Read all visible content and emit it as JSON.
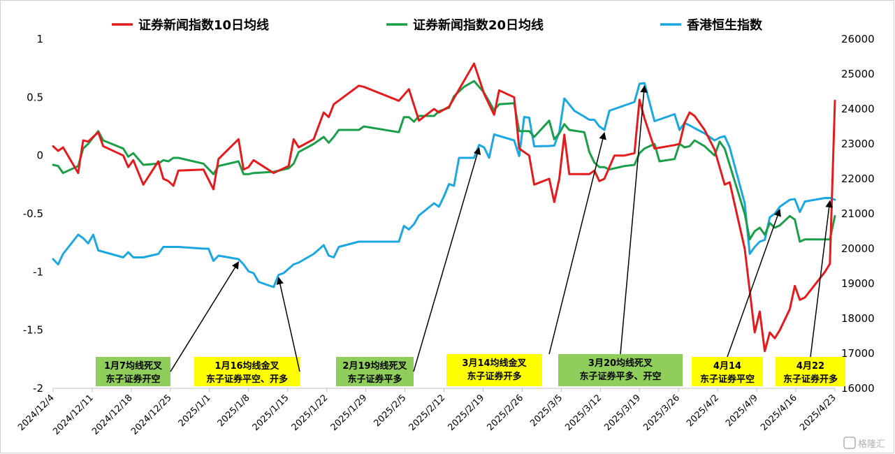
{
  "chart_data": {
    "type": "line",
    "title": "",
    "legend_position": "top",
    "x_labels": [
      "2024/12/4",
      "2024/12/11",
      "2024/12/18",
      "2024/12/25",
      "2025/1/1",
      "2025/1/8",
      "2025/1/15",
      "2025/1/22",
      "2025/1/29",
      "2025/2/5",
      "2025/2/12",
      "2025/2/19",
      "2025/2/26",
      "2025/3/5",
      "2025/3/12",
      "2025/3/19",
      "2025/3/26",
      "2025/4/2",
      "2025/4/9",
      "2025/4/16",
      "2025/4/23"
    ],
    "left_axis": {
      "range": [
        -2,
        1
      ],
      "ticks": [
        "1",
        "0.5",
        "0",
        "-0.5",
        "-1",
        "-1.5",
        "-2"
      ]
    },
    "right_axis": {
      "range": [
        16000,
        26000
      ],
      "ticks": [
        "26000",
        "25000",
        "24000",
        "23000",
        "22000",
        "21000",
        "20000",
        "19000",
        "18000",
        "17000",
        "16000"
      ]
    },
    "series": [
      {
        "name": "证券新闻指数10日均线",
        "color": "#e41a1c",
        "axis": "left",
        "points": [
          [
            0,
            0.08
          ],
          [
            1,
            0.04
          ],
          [
            2,
            0.07
          ],
          [
            5,
            -0.15
          ],
          [
            6,
            0.13
          ],
          [
            7,
            0.12
          ],
          [
            9,
            0.2
          ],
          [
            10,
            0.08
          ],
          [
            14,
            0.0
          ],
          [
            15,
            -0.1
          ],
          [
            16,
            -0.04
          ],
          [
            18,
            -0.25
          ],
          [
            21,
            -0.05
          ],
          [
            22,
            -0.2
          ],
          [
            23,
            -0.22
          ],
          [
            24,
            -0.26
          ],
          [
            25,
            -0.13
          ],
          [
            30,
            -0.12
          ],
          [
            32,
            -0.29
          ],
          [
            33,
            -0.03
          ],
          [
            37,
            0.14
          ],
          [
            38,
            -0.12
          ],
          [
            39,
            -0.1
          ],
          [
            40,
            -0.04
          ],
          [
            44,
            -0.15
          ],
          [
            47,
            -0.09
          ],
          [
            48,
            0.14
          ],
          [
            49,
            0.07
          ],
          [
            52,
            0.14
          ],
          [
            54,
            0.37
          ],
          [
            55,
            0.33
          ],
          [
            56,
            0.44
          ],
          [
            61,
            0.6
          ],
          [
            62,
            0.59
          ],
          [
            69,
            0.47
          ],
          [
            71,
            0.57
          ],
          [
            73,
            0.3
          ],
          [
            76,
            0.4
          ],
          [
            77,
            0.37
          ],
          [
            79,
            0.42
          ],
          [
            84,
            0.79
          ],
          [
            86,
            0.53
          ],
          [
            88,
            0.35
          ],
          [
            89,
            0.56
          ],
          [
            92,
            0.5
          ],
          [
            93,
            0.06
          ],
          [
            95,
            0.0
          ],
          [
            96,
            -0.25
          ],
          [
            99,
            -0.2
          ],
          [
            100,
            -0.4
          ],
          [
            101,
            -0.2
          ],
          [
            102,
            0.18
          ],
          [
            103,
            -0.16
          ],
          [
            106,
            -0.16
          ],
          [
            107,
            -0.16
          ],
          [
            108,
            -0.13
          ],
          [
            109,
            -0.22
          ],
          [
            110,
            -0.2
          ],
          [
            111,
            -0.1
          ],
          [
            112,
            0.0
          ],
          [
            114,
            0.0
          ],
          [
            116,
            0.02
          ],
          [
            117,
            0.48
          ],
          [
            118,
            0.32
          ],
          [
            120,
            0.06
          ],
          [
            124,
            0.09
          ],
          [
            125,
            0.1
          ],
          [
            126,
            0.28
          ],
          [
            127,
            0.37
          ],
          [
            128,
            0.34
          ],
          [
            130,
            0.22
          ],
          [
            132,
            0.05
          ],
          [
            134,
            -0.25
          ],
          [
            135,
            -0.23
          ],
          [
            138,
            -0.8
          ],
          [
            140,
            -1.52
          ],
          [
            141,
            -1.34
          ],
          [
            142,
            -1.68
          ],
          [
            143,
            -1.52
          ],
          [
            144,
            -1.57
          ],
          [
            145,
            -1.5
          ],
          [
            147,
            -1.32
          ],
          [
            148,
            -1.12
          ],
          [
            149,
            -1.24
          ],
          [
            150,
            -1.22
          ],
          [
            154,
            -1.0
          ],
          [
            155,
            -0.93
          ],
          [
            156,
            0.47
          ]
        ]
      },
      {
        "name": "证券新闻指数20日均线",
        "color": "#1b9e48",
        "axis": "left",
        "points": [
          [
            0,
            -0.08
          ],
          [
            1,
            -0.09
          ],
          [
            2,
            -0.15
          ],
          [
            5,
            -0.09
          ],
          [
            6,
            0.06
          ],
          [
            7,
            0.1
          ],
          [
            9,
            0.21
          ],
          [
            10,
            0.13
          ],
          [
            14,
            0.06
          ],
          [
            15,
            -0.01
          ],
          [
            16,
            0.02
          ],
          [
            18,
            -0.08
          ],
          [
            21,
            -0.07
          ],
          [
            22,
            -0.04
          ],
          [
            23,
            -0.05
          ],
          [
            24,
            -0.02
          ],
          [
            25,
            -0.02
          ],
          [
            30,
            -0.07
          ],
          [
            32,
            -0.16
          ],
          [
            33,
            -0.09
          ],
          [
            37,
            -0.05
          ],
          [
            38,
            -0.16
          ],
          [
            39,
            -0.16
          ],
          [
            40,
            -0.15
          ],
          [
            44,
            -0.14
          ],
          [
            47,
            -0.11
          ],
          [
            48,
            -0.07
          ],
          [
            49,
            0.03
          ],
          [
            52,
            0.1
          ],
          [
            54,
            0.16
          ],
          [
            55,
            0.11
          ],
          [
            56,
            0.16
          ],
          [
            57,
            0.22
          ],
          [
            61,
            0.22
          ],
          [
            62,
            0.25
          ],
          [
            69,
            0.2
          ],
          [
            70,
            0.33
          ],
          [
            71,
            0.33
          ],
          [
            72,
            0.29
          ],
          [
            73,
            0.34
          ],
          [
            76,
            0.34
          ],
          [
            77,
            0.38
          ],
          [
            79,
            0.41
          ],
          [
            80,
            0.51
          ],
          [
            82,
            0.59
          ],
          [
            84,
            0.64
          ],
          [
            86,
            0.54
          ],
          [
            88,
            0.39
          ],
          [
            89,
            0.44
          ],
          [
            92,
            0.45
          ],
          [
            93,
            0.21
          ],
          [
            94,
            0.21
          ],
          [
            95,
            0.21
          ],
          [
            96,
            0.16
          ],
          [
            99,
            0.3
          ],
          [
            100,
            0.14
          ],
          [
            101,
            0.19
          ],
          [
            102,
            0.27
          ],
          [
            103,
            0.22
          ],
          [
            106,
            0.2
          ],
          [
            107,
            0.03
          ],
          [
            108,
            -0.06
          ],
          [
            109,
            -0.1
          ],
          [
            110,
            -0.1
          ],
          [
            111,
            -0.12
          ],
          [
            112,
            -0.11
          ],
          [
            114,
            -0.09
          ],
          [
            116,
            -0.08
          ],
          [
            117,
            0.02
          ],
          [
            118,
            0.06
          ],
          [
            120,
            0.1
          ],
          [
            121,
            -0.05
          ],
          [
            124,
            -0.03
          ],
          [
            125,
            0.1
          ],
          [
            126,
            0.07
          ],
          [
            127,
            0.08
          ],
          [
            128,
            0.13
          ],
          [
            130,
            0.08
          ],
          [
            132,
            0.0
          ],
          [
            133,
            0.12
          ],
          [
            134,
            0.06
          ],
          [
            135,
            -0.08
          ],
          [
            138,
            -0.5
          ],
          [
            139,
            -0.72
          ],
          [
            140,
            -0.65
          ],
          [
            141,
            -0.62
          ],
          [
            142,
            -0.68
          ],
          [
            143,
            -0.58
          ],
          [
            144,
            -0.62
          ],
          [
            145,
            -0.6
          ],
          [
            147,
            -0.52
          ],
          [
            148,
            -0.55
          ],
          [
            149,
            -0.74
          ],
          [
            150,
            -0.72
          ],
          [
            154,
            -0.72
          ],
          [
            155,
            -0.72
          ],
          [
            156,
            -0.52
          ]
        ]
      },
      {
        "name": "香港恒生指数",
        "color": "#1ba7e0",
        "axis": "right",
        "points": [
          [
            0,
            19700
          ],
          [
            1,
            19550
          ],
          [
            2,
            19850
          ],
          [
            5,
            20400
          ],
          [
            6,
            20300
          ],
          [
            7,
            20150
          ],
          [
            8,
            20400
          ],
          [
            9,
            19950
          ],
          [
            14,
            19750
          ],
          [
            15,
            19900
          ],
          [
            16,
            19750
          ],
          [
            18,
            19750
          ],
          [
            21,
            19850
          ],
          [
            22,
            20050
          ],
          [
            25,
            20050
          ],
          [
            30,
            20000
          ],
          [
            31,
            20000
          ],
          [
            32,
            19650
          ],
          [
            33,
            19800
          ],
          [
            37,
            19700
          ],
          [
            38,
            19550
          ],
          [
            39,
            19350
          ],
          [
            40,
            19300
          ],
          [
            41,
            19050
          ],
          [
            44,
            18900
          ],
          [
            45,
            19250
          ],
          [
            46,
            19300
          ],
          [
            48,
            19550
          ],
          [
            49,
            19600
          ],
          [
            52,
            19850
          ],
          [
            54,
            20100
          ],
          [
            55,
            19800
          ],
          [
            56,
            19750
          ],
          [
            57,
            20050
          ],
          [
            61,
            20200
          ],
          [
            62,
            20200
          ],
          [
            69,
            20200
          ],
          [
            70,
            20650
          ],
          [
            71,
            20550
          ],
          [
            72,
            20700
          ],
          [
            73,
            20950
          ],
          [
            76,
            21300
          ],
          [
            77,
            21200
          ],
          [
            78,
            21500
          ],
          [
            79,
            21850
          ],
          [
            80,
            21800
          ],
          [
            81,
            22600
          ],
          [
            84,
            22600
          ],
          [
            85,
            22970
          ],
          [
            86,
            22900
          ],
          [
            87,
            22600
          ],
          [
            88,
            23270
          ],
          [
            92,
            23100
          ],
          [
            93,
            22650
          ],
          [
            94,
            23770
          ],
          [
            95,
            23750
          ],
          [
            96,
            22930
          ],
          [
            99,
            22940
          ],
          [
            100,
            22950
          ],
          [
            101,
            23340
          ],
          [
            102,
            24300
          ],
          [
            103,
            24130
          ],
          [
            104,
            23950
          ],
          [
            106,
            23780
          ],
          [
            107,
            23690
          ],
          [
            108,
            23690
          ],
          [
            109,
            23500
          ],
          [
            110,
            23400
          ],
          [
            111,
            23950
          ],
          [
            112,
            24000
          ],
          [
            114,
            24100
          ],
          [
            116,
            24200
          ],
          [
            117,
            24720
          ],
          [
            118,
            24740
          ],
          [
            120,
            23650
          ],
          [
            121,
            23700
          ],
          [
            124,
            23850
          ],
          [
            125,
            23400
          ],
          [
            126,
            23600
          ],
          [
            127,
            23530
          ],
          [
            128,
            23450
          ],
          [
            130,
            23300
          ],
          [
            132,
            23100
          ],
          [
            133,
            23180
          ],
          [
            134,
            23220
          ],
          [
            135,
            22900
          ],
          [
            138,
            21300
          ],
          [
            139,
            19850
          ],
          [
            140,
            20050
          ],
          [
            141,
            20200
          ],
          [
            142,
            20250
          ],
          [
            143,
            20900
          ],
          [
            144,
            21000
          ],
          [
            145,
            21200
          ],
          [
            147,
            21400
          ],
          [
            148,
            21420
          ],
          [
            149,
            21050
          ],
          [
            150,
            21350
          ],
          [
            154,
            21450
          ],
          [
            155,
            21450
          ],
          [
            156,
            21400
          ]
        ]
      }
    ],
    "annotations": [
      {
        "lines": [
          "1月7均线死叉",
          "东子证券开空"
        ],
        "bg": "#8fce5a",
        "target": 37
      },
      {
        "lines": [
          "1月16均线金叉",
          "东子证券平空、开多"
        ],
        "bg": "#ffff00",
        "target": 45
      },
      {
        "lines": [
          "2月19均线死叉",
          "东子证券平多"
        ],
        "bg": "#8fce5a",
        "target": 85
      },
      {
        "lines": [
          "3月14均线金叉",
          "东子证券开多"
        ],
        "bg": "#ffff00",
        "target": 110
      },
      {
        "lines": [
          "3月20均线死叉",
          "东子证券平多、开空"
        ],
        "bg": "#8fce5a",
        "target": 118
      },
      {
        "lines": [
          "4月14",
          "东子证券平空"
        ],
        "bg": "#ffff00",
        "target": 145
      },
      {
        "lines": [
          "4月22",
          "东子证券开多"
        ],
        "bg": "#ffff00",
        "target": 155
      }
    ]
  },
  "watermark": "格隆汇"
}
